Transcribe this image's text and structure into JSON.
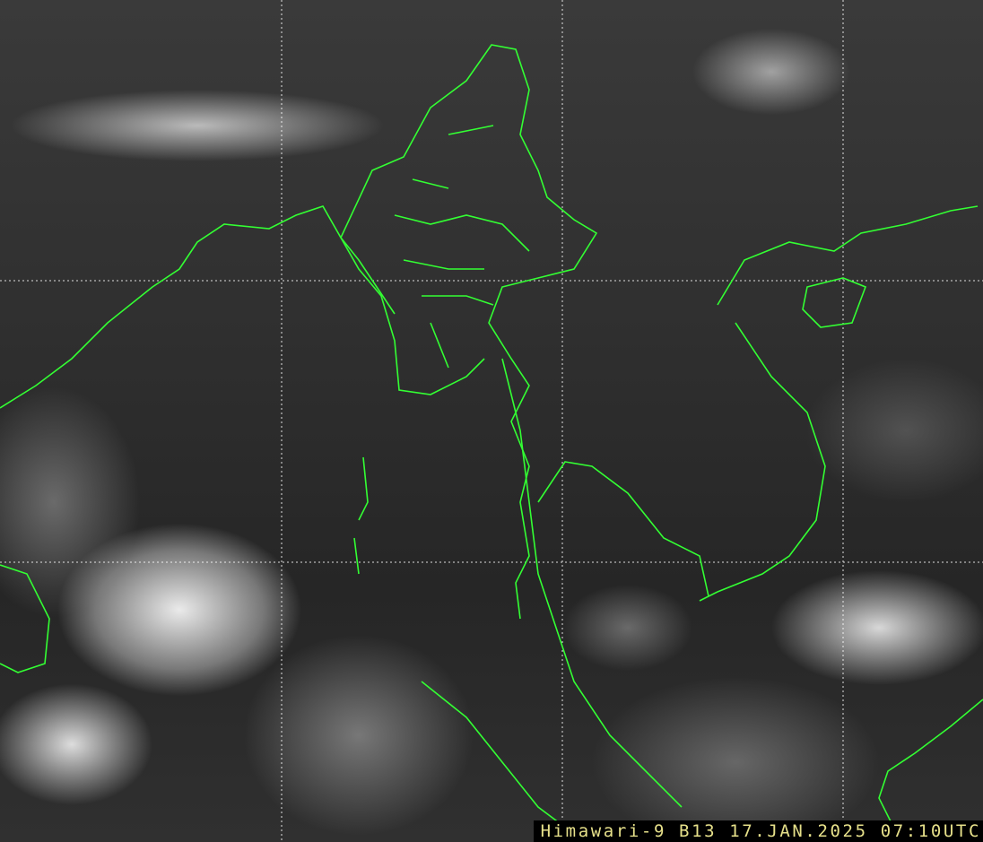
{
  "caption": {
    "satellite": "Himawari-9",
    "band": "B13",
    "date": "17.JAN.2025",
    "time": "07:10UTC"
  },
  "colors": {
    "border": "#33ff33",
    "grid": "#ffffff",
    "caption_text": "#e6e08a"
  },
  "imagery": "infrared-satellite"
}
